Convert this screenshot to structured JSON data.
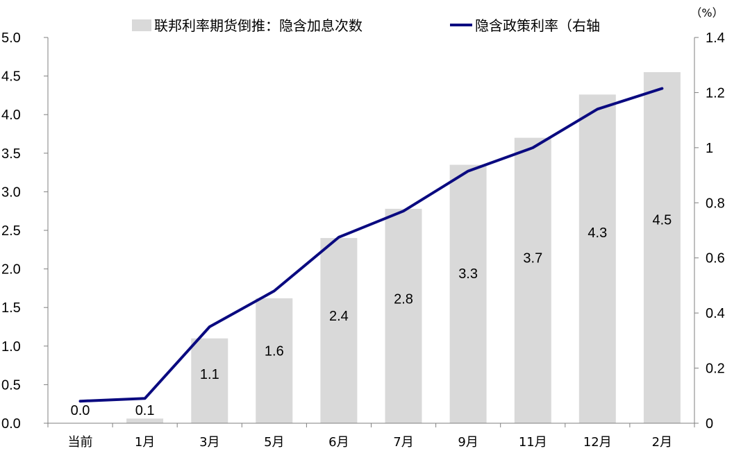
{
  "chart_data": {
    "type": "bar",
    "categories": [
      "当前",
      "1月",
      "3月",
      "5月",
      "6月",
      "7月",
      "9月",
      "11月",
      "12月",
      "2月"
    ],
    "series": [
      {
        "name": "联邦利率期货倒推：隐含加息次数",
        "type": "bar",
        "axis": "left",
        "color": "#d9d9d9",
        "values": [
          0.0,
          0.06,
          1.1,
          1.62,
          2.4,
          2.78,
          3.35,
          3.7,
          4.26,
          4.55
        ],
        "labels": [
          "0.0",
          "0.1",
          "1.1",
          "1.6",
          "2.4",
          "2.8",
          "3.3",
          "3.7",
          "4.3",
          "4.5"
        ]
      },
      {
        "name": "隐含政策利率（右轴",
        "type": "line",
        "axis": "right",
        "color": "#0a0a80",
        "values": [
          0.08,
          0.09,
          0.35,
          0.48,
          0.675,
          0.77,
          0.915,
          1.0,
          1.14,
          1.215
        ]
      }
    ],
    "left_axis": {
      "min": 0,
      "max": 5,
      "ticks": [
        "0.0",
        "0.5",
        "1.0",
        "1.5",
        "2.0",
        "2.5",
        "3.0",
        "3.5",
        "4.0",
        "4.5",
        "5.0"
      ]
    },
    "right_axis": {
      "min": 0,
      "max": 1.4,
      "unit": "（%）",
      "ticks": [
        "0",
        "0.2",
        "0.4",
        "0.6",
        "0.8",
        "1",
        "1.2",
        "1.4"
      ]
    },
    "grid": false,
    "legend_position": "top"
  }
}
